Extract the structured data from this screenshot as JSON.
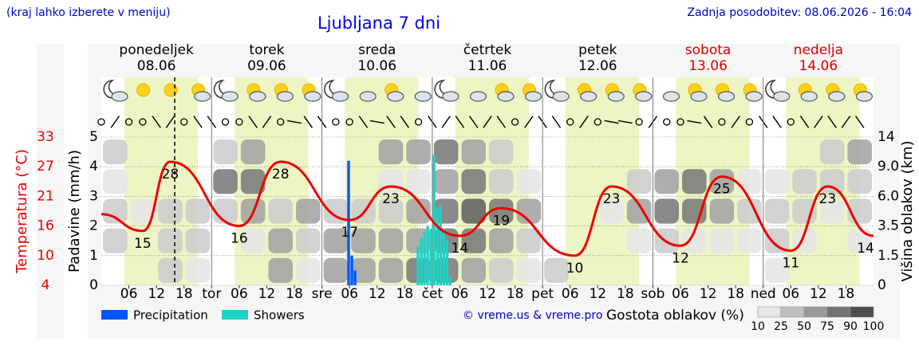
{
  "page": {
    "menu_note": "(kraj lahko izberete v meniju)",
    "updated": "Zadnja posodobitev: 08.06.2026 - 16:04",
    "copyright": "© vreme.us & vreme.pro"
  },
  "chart_data": {
    "type": "meteogram",
    "title": "Ljubljana 7 dni",
    "days": [
      {
        "name": "ponedeljek",
        "date": "08.06",
        "color": "#000000"
      },
      {
        "name": "torek",
        "date": "09.06",
        "color": "#000000"
      },
      {
        "name": "sreda",
        "date": "10.06",
        "color": "#000000"
      },
      {
        "name": "četrtek",
        "date": "11.06",
        "color": "#000000"
      },
      {
        "name": "petek",
        "date": "12.06",
        "color": "#000000"
      },
      {
        "name": "sobota",
        "date": "13.06",
        "color": "#dd0000"
      },
      {
        "name": "nedelja",
        "date": "14.06",
        "color": "#dd0000"
      }
    ],
    "xlim": [
      0,
      168
    ],
    "xticks": [
      {
        "value": 6,
        "label": "06"
      },
      {
        "value": 12,
        "label": "12"
      },
      {
        "value": 18,
        "label": "18"
      },
      {
        "value": 24,
        "label": "tor"
      },
      {
        "value": 30,
        "label": "06"
      },
      {
        "value": 36,
        "label": "12"
      },
      {
        "value": 42,
        "label": "18"
      },
      {
        "value": 48,
        "label": "sre"
      },
      {
        "value": 54,
        "label": "06"
      },
      {
        "value": 60,
        "label": "12"
      },
      {
        "value": 66,
        "label": "18"
      },
      {
        "value": 72,
        "label": "čet"
      },
      {
        "value": 78,
        "label": "06"
      },
      {
        "value": 84,
        "label": "12"
      },
      {
        "value": 90,
        "label": "18"
      },
      {
        "value": 96,
        "label": "pet"
      },
      {
        "value": 102,
        "label": "06"
      },
      {
        "value": 108,
        "label": "12"
      },
      {
        "value": 114,
        "label": "18"
      },
      {
        "value": 120,
        "label": "sob"
      },
      {
        "value": 126,
        "label": "06"
      },
      {
        "value": 132,
        "label": "12"
      },
      {
        "value": 138,
        "label": "18"
      },
      {
        "value": 144,
        "label": "ned"
      },
      {
        "value": 150,
        "label": "06"
      },
      {
        "value": 156,
        "label": "12"
      },
      {
        "value": 162,
        "label": "18"
      }
    ],
    "daylight": {
      "start": 5,
      "end": 21
    },
    "y_label": "Padavine (mm/h)",
    "ylim": [
      0,
      5
    ],
    "yticks": [
      0,
      1,
      2,
      3,
      4,
      5
    ],
    "grid": true,
    "temp_label": "Temperatura (°C)",
    "temp_ticks": [
      4,
      10,
      16,
      21,
      27,
      33
    ],
    "temp_color": "#ee0000",
    "y2_label": "Višina oblakov (km)",
    "y2ticks": [
      0,
      1.5,
      3.5,
      {
        "value": 6,
        "label": "6.0"
      },
      {
        "value": 9,
        "label": "9.0"
      },
      14
    ],
    "temperature": {
      "x": [
        0,
        9,
        15,
        30,
        39,
        54,
        63,
        78,
        87,
        103,
        111,
        126,
        135,
        150,
        158,
        168
      ],
      "values": [
        18,
        15,
        28,
        16,
        28,
        17,
        23,
        14,
        19,
        10,
        23,
        12,
        25,
        11,
        23,
        14
      ]
    },
    "series": [
      {
        "name": "Precipitation",
        "color": "#0055ff",
        "x": [
          53.8,
          54.5,
          55.2
        ],
        "values": [
          4.2,
          1.0,
          0.5
        ]
      },
      {
        "name": "Showers",
        "color": "#1ed2c4",
        "x": [
          68.9,
          69.6,
          70.3,
          71.0,
          71.7,
          72.4,
          73.1,
          73.8,
          74.5,
          75.2,
          75.9
        ],
        "values": [
          1.3,
          1.6,
          1.8,
          2.0,
          1.9,
          4.4,
          2.6,
          2.7,
          1.9,
          1.5,
          0.3
        ]
      }
    ],
    "cloud_density": [
      [
        0,
        25,
        25,
        10,
        25
      ],
      [
        0,
        0,
        10,
        0,
        0
      ],
      [
        25,
        25,
        25,
        0,
        0
      ],
      [
        10,
        25,
        25,
        0,
        0
      ],
      [
        0,
        0,
        25,
        75,
        25
      ],
      [
        0,
        10,
        50,
        75,
        50
      ],
      [
        50,
        50,
        25,
        0,
        0
      ],
      [
        10,
        25,
        50,
        0,
        0
      ],
      [
        50,
        50,
        25,
        0,
        0
      ],
      [
        50,
        50,
        25,
        0,
        0
      ],
      [
        50,
        50,
        25,
        10,
        50
      ],
      [
        75,
        50,
        50,
        10,
        50
      ],
      [
        75,
        75,
        75,
        50,
        75
      ],
      [
        50,
        75,
        90,
        75,
        50
      ],
      [
        25,
        50,
        75,
        25,
        25
      ],
      [
        10,
        25,
        50,
        10,
        0
      ],
      [
        25,
        0,
        0,
        0,
        0
      ],
      [
        0,
        0,
        0,
        0,
        0
      ],
      [
        0,
        0,
        10,
        0,
        0
      ],
      [
        0,
        10,
        50,
        25,
        0
      ],
      [
        0,
        25,
        75,
        50,
        0
      ],
      [
        0,
        10,
        75,
        75,
        0
      ],
      [
        0,
        10,
        50,
        50,
        0
      ],
      [
        0,
        10,
        25,
        10,
        0
      ],
      [
        10,
        25,
        25,
        10,
        0
      ],
      [
        0,
        10,
        25,
        25,
        0
      ],
      [
        0,
        0,
        10,
        25,
        25
      ],
      [
        0,
        10,
        25,
        25,
        50
      ]
    ],
    "cloud_legend": {
      "title": "Gostota oblakov (%)",
      "levels": [
        10,
        25,
        50,
        75,
        90,
        100
      ]
    }
  }
}
